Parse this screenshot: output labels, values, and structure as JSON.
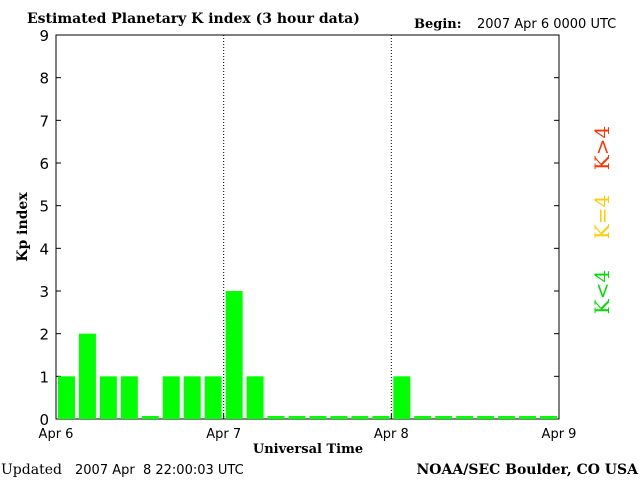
{
  "chart_data": {
    "type": "bar",
    "title": "Estimated Planetary K index (3 hour data)",
    "begin_label": "Begin:",
    "begin_value": "2007 Apr 6 0000 UTC",
    "xlabel": "Universal Time",
    "ylabel": "Kp index",
    "ylim": [
      0,
      9
    ],
    "yticks": [
      "0",
      "1",
      "2",
      "3",
      "4",
      "5",
      "6",
      "7",
      "8",
      "9"
    ],
    "xticks": [
      "Apr 6",
      "Apr 7",
      "Apr 8",
      "Apr 9"
    ],
    "x_range_hours": [
      0,
      72
    ],
    "bar_hours": 3,
    "values": [
      1,
      2,
      1,
      1,
      0,
      1,
      1,
      1,
      3,
      1,
      0,
      0,
      0,
      0,
      0,
      0,
      1,
      0,
      0,
      0,
      0,
      0,
      0,
      0
    ],
    "bar_color": "#00ff00",
    "legend": [
      {
        "label": "K>4",
        "color": "#ff3300"
      },
      {
        "label": "K=4",
        "color": "#ffcc00"
      },
      {
        "label": "K<4",
        "color": "#00dd00"
      }
    ],
    "day_separators": true,
    "grid": false
  },
  "footer": {
    "updated_label": "Updated",
    "updated_value": "2007 Apr  8 22:00:03 UTC",
    "source": "NOAA/SEC Boulder, CO USA"
  }
}
